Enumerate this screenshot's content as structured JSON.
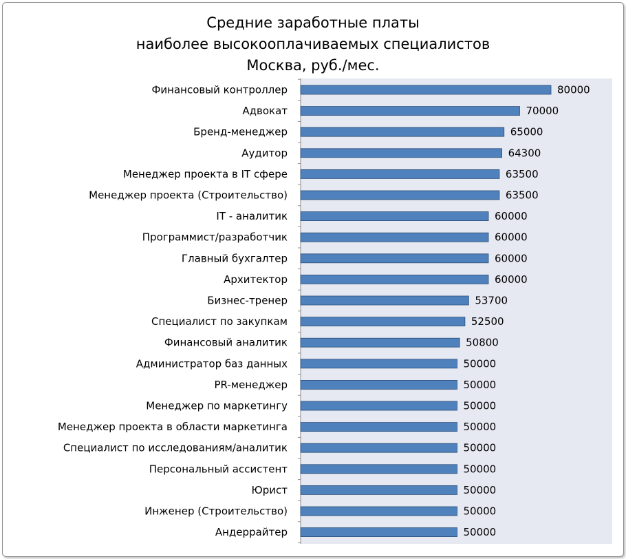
{
  "chart_data": {
    "type": "bar",
    "orientation": "horizontal",
    "title_lines": [
      "Средние заработные платы",
      "наиболее высокооплачиваемых специалистов",
      "Москва, руб./мес."
    ],
    "categories": [
      "Финансовый контроллер",
      "Адвокат",
      "Бренд-менеджер",
      "Аудитор",
      "Менеджер проекта в IT сфере",
      "Менеджер проекта (Строительство)",
      "IT - аналитик",
      "Программист/разработчик",
      "Главный бухгалтер",
      "Архитектор",
      "Бизнес-тренер",
      "Специалист по закупкам",
      "Финансовый аналитик",
      "Администратор баз данных",
      "PR-менеджер",
      "Менеджер по маркетингу",
      "Менеджер проекта в области маркетинга",
      "Специалист по исследованиям/аналитик",
      "Персональный ассистент",
      "Юрист",
      "Инженер (Строительство)",
      "Андеррайтер"
    ],
    "values": [
      80000,
      70000,
      65000,
      64300,
      63500,
      63500,
      60000,
      60000,
      60000,
      60000,
      53700,
      52500,
      50800,
      50000,
      50000,
      50000,
      50000,
      50000,
      50000,
      50000,
      50000,
      50000
    ],
    "data_labels": true,
    "xlim": [
      0,
      100000
    ],
    "grid": false,
    "colors": {
      "bar_fill": "#4f81bd",
      "bar_stroke": "#2c4d75",
      "plot_area": "#e6e9f2"
    }
  }
}
